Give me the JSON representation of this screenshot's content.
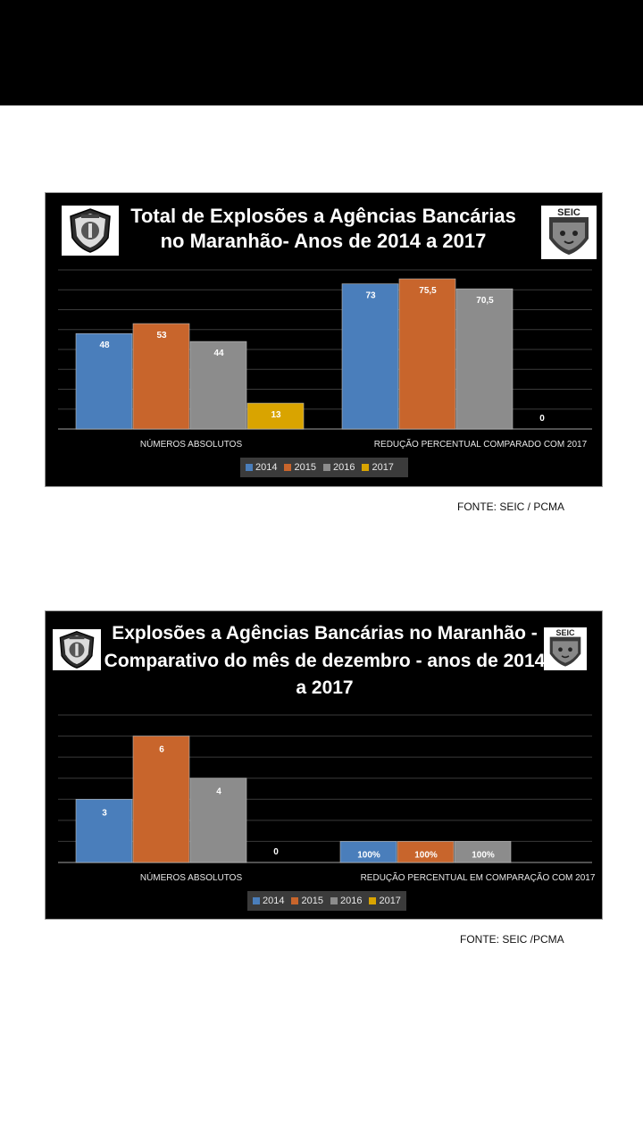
{
  "charts": [
    {
      "title": "Total de Explosões a Agências Bancárias no Maranhão- Anos de 2014 a 2017",
      "source": "FONTE: SEIC / PCMA",
      "logo_left": "policia-civil-emblem",
      "logo_right": "seic-emblem",
      "logo_right_text": "SEIC"
    },
    {
      "title": "Explosões a Agências Bancárias no Maranhão - Comparativo do mês de dezembro - anos de 2014 a 2017",
      "source": "FONTE: SEIC /PCMA",
      "logo_left": "policia-civil-emblem",
      "logo_right": "seic-emblem",
      "logo_right_text": "SEIC"
    }
  ],
  "colors": {
    "2014": "#4a7ebb",
    "2015": "#c8652c",
    "2016": "#8c8c8c",
    "2017": "#d9a400",
    "background": "#000000",
    "gridline": "#3a3a3a"
  },
  "chart_data": [
    {
      "type": "bar",
      "title": "Total de Explosões a Agências Bancárias no Maranhão- Anos de 2014 a 2017",
      "categories": [
        "NÚMEROS ABSOLUTOS",
        "REDUÇÃO PERCENTUAL COMPARADO COM 2017"
      ],
      "series": [
        {
          "name": "2014",
          "values": [
            48,
            73
          ],
          "labels": [
            "48",
            "73"
          ]
        },
        {
          "name": "2015",
          "values": [
            53,
            75.5
          ],
          "labels": [
            "53",
            "75,5"
          ]
        },
        {
          "name": "2016",
          "values": [
            44,
            70.5
          ],
          "labels": [
            "44",
            "70,5"
          ]
        },
        {
          "name": "2017",
          "values": [
            13,
            0
          ],
          "labels": [
            "13",
            "0"
          ]
        }
      ],
      "ylim": [
        0,
        80
      ],
      "grid": true,
      "legend_position": "bottom"
    },
    {
      "type": "bar",
      "title": "Explosões a Agências Bancárias no Maranhão - Comparativo do mês de dezembro - anos de 2014 a 2017",
      "categories": [
        "NÚMEROS ABSOLUTOS",
        "REDUÇÃO PERCENTUAL EM COMPARAÇÃO COM 2017"
      ],
      "series": [
        {
          "name": "2014",
          "values": [
            3,
            1
          ],
          "labels": [
            "3",
            "100%"
          ]
        },
        {
          "name": "2015",
          "values": [
            6,
            1
          ],
          "labels": [
            "6",
            "100%"
          ]
        },
        {
          "name": "2016",
          "values": [
            4,
            1
          ],
          "labels": [
            "4",
            "100%"
          ]
        },
        {
          "name": "2017",
          "values": [
            0,
            null
          ],
          "labels": [
            "0",
            ""
          ]
        }
      ],
      "ylim": [
        0,
        7
      ],
      "grid": true,
      "legend_position": "bottom"
    }
  ]
}
